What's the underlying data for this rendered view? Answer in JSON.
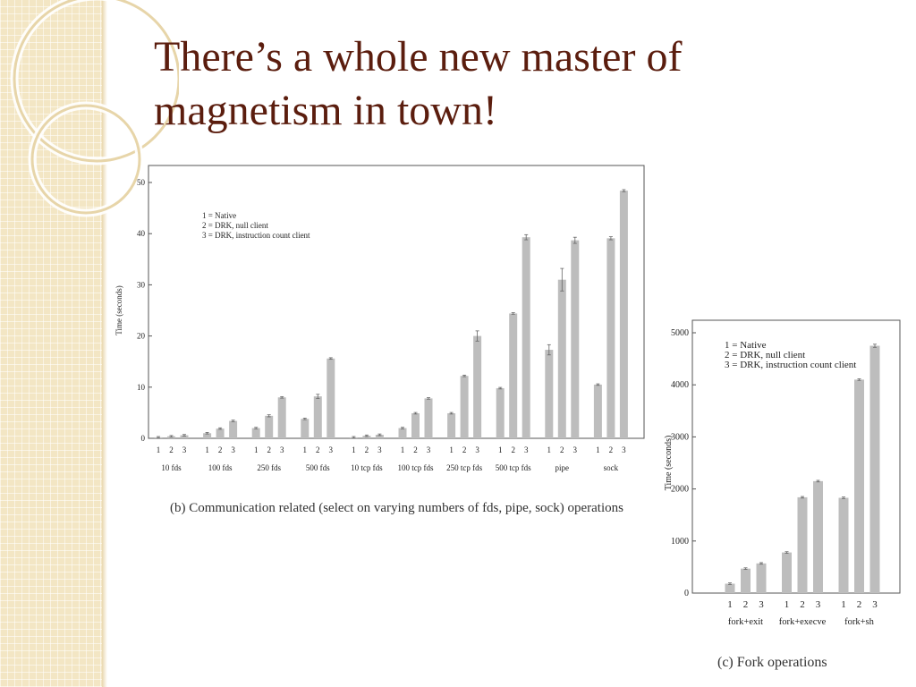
{
  "slide": {
    "title_line1": "There’s a whole new master of",
    "title_line2": "magnetism in town!"
  },
  "theme": {
    "title_color": "#5b1d0e",
    "bar_color": "#bdbdbd",
    "sidebar_color": "#f3e6c4"
  },
  "chart_data": [
    {
      "type": "bar",
      "caption": "(b) Communication related (select on varying numbers of fds, pipe, sock) operations",
      "ylabel": "Time (seconds)",
      "ylim": [
        0,
        50
      ],
      "yticks": [
        0,
        10,
        20,
        30,
        40,
        50
      ],
      "legend": [
        "1 = Native",
        "2 = DRK, null client",
        "3 = DRK, instruction count client"
      ],
      "legend_position": "top-left",
      "bar_labels": [
        "1",
        "2",
        "3"
      ],
      "groups": [
        {
          "label": "10 fds",
          "values": [
            0.2,
            0.4,
            0.6
          ],
          "errors": [
            0,
            0,
            0
          ]
        },
        {
          "label": "100 fds",
          "values": [
            1.0,
            1.9,
            3.4
          ],
          "errors": [
            0,
            0,
            0
          ]
        },
        {
          "label": "250 fds",
          "values": [
            2.0,
            4.4,
            8.0
          ],
          "errors": [
            0,
            0.2,
            0
          ]
        },
        {
          "label": "500 fds",
          "values": [
            3.8,
            8.2,
            15.6
          ],
          "errors": [
            0,
            0.4,
            0
          ]
        },
        {
          "label": "10 tcp fds",
          "values": [
            0.2,
            0.5,
            0.7
          ],
          "errors": [
            0,
            0,
            0
          ]
        },
        {
          "label": "100 tcp fds",
          "values": [
            2.0,
            4.9,
            7.8
          ],
          "errors": [
            0,
            0,
            0
          ]
        },
        {
          "label": "250 tcp fds",
          "values": [
            4.9,
            12.2,
            20.0
          ],
          "errors": [
            0,
            0,
            1.0
          ]
        },
        {
          "label": "500 tcp fds",
          "values": [
            9.8,
            24.4,
            39.3
          ],
          "errors": [
            0,
            0,
            0.5
          ]
        },
        {
          "label": "pipe",
          "values": [
            17.3,
            31.0,
            38.7
          ],
          "errors": [
            1.0,
            2.2,
            0.6
          ]
        },
        {
          "label": "sock",
          "values": [
            10.5,
            39.1,
            48.4
          ],
          "errors": [
            0,
            0.3,
            0.2
          ]
        }
      ]
    },
    {
      "type": "bar",
      "caption": "(c) Fork operations",
      "ylabel": "Time (seconds)",
      "ylim": [
        0,
        5000
      ],
      "yticks": [
        0,
        1000,
        2000,
        3000,
        4000,
        5000
      ],
      "legend": [
        "1 = Native",
        "2 = DRK, null client",
        "3 = DRK, instruction count client"
      ],
      "legend_position": "top-left",
      "bar_labels": [
        "1",
        "2",
        "3"
      ],
      "groups": [
        {
          "label": "fork+exit",
          "values": [
            180,
            470,
            570
          ],
          "errors": [
            0,
            0,
            0
          ]
        },
        {
          "label": "fork+execve",
          "values": [
            780,
            1840,
            2150
          ],
          "errors": [
            0,
            0,
            0
          ]
        },
        {
          "label": "fork+sh",
          "values": [
            1830,
            4100,
            4750
          ],
          "errors": [
            0,
            0,
            30
          ]
        }
      ]
    }
  ]
}
